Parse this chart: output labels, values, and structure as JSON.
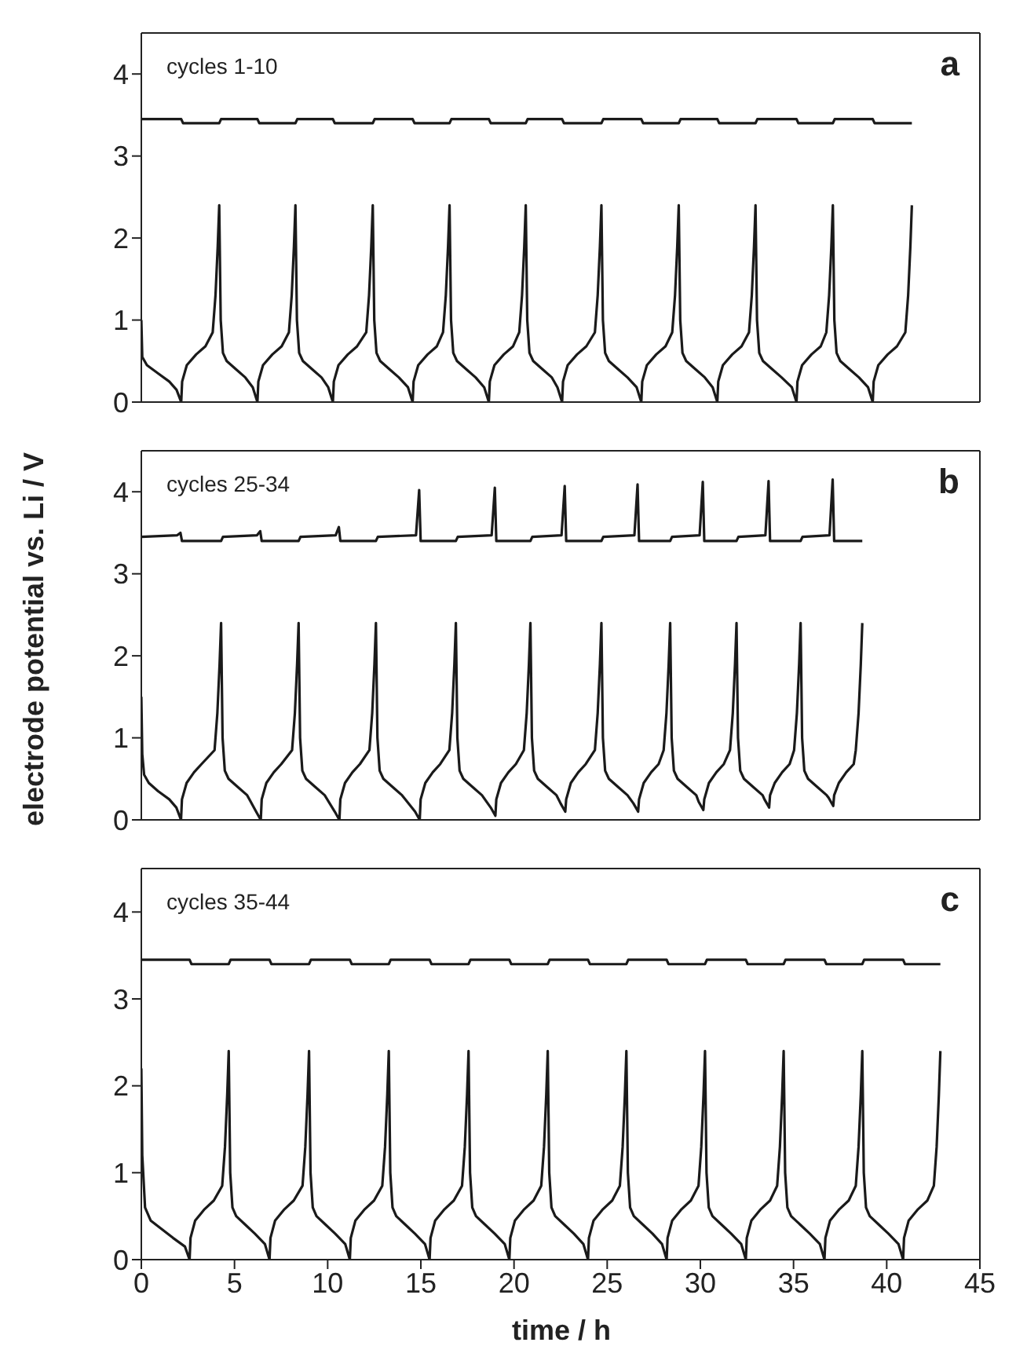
{
  "chart_data": [
    {
      "type": "line",
      "xlim": [
        0,
        45
      ],
      "ylim": [
        0,
        4.5
      ],
      "xticks": [
        0,
        5,
        10,
        15,
        20,
        25,
        30,
        35,
        40,
        45
      ],
      "yticks": [
        0,
        1,
        2,
        3,
        4
      ],
      "tick_labels": "y",
      "marker": "none",
      "line_style": "solid",
      "annotations": [
        "cycles 1-10",
        "a"
      ],
      "series": [
        {
          "color": "#1a1a1a",
          "x": [
            0,
            2.14,
            2.24,
            4.18,
            4.28,
            6.23,
            6.33,
            8.27,
            8.37,
            10.28,
            10.38,
            12.42,
            12.52,
            14.56,
            14.66,
            16.54,
            16.64,
            18.65,
            18.75,
            20.63,
            20.73,
            22.58,
            22.68,
            24.69,
            24.79,
            26.83,
            26.93,
            28.84,
            28.94,
            30.91,
            31.01,
            32.96,
            33.06,
            35.16,
            35.26,
            37.11,
            37.21,
            39.25,
            39.35,
            41.35
          ],
          "values": [
            3.45,
            3.45,
            3.4,
            3.4,
            3.45,
            3.45,
            3.4,
            3.4,
            3.45,
            3.45,
            3.4,
            3.4,
            3.45,
            3.45,
            3.4,
            3.4,
            3.45,
            3.45,
            3.4,
            3.4,
            3.45,
            3.45,
            3.4,
            3.4,
            3.45,
            3.45,
            3.4,
            3.4,
            3.45,
            3.45,
            3.4,
            3.4,
            3.45,
            3.45,
            3.4,
            3.4,
            3.45,
            3.45,
            3.4,
            3.4
          ]
        },
        {
          "color": "#1a1a1a",
          "x": [
            0,
            0.05,
            0.3,
            0.9,
            1.5,
            1.89,
            2.14,
            2.19,
            2.44,
            2.94,
            3.44,
            3.83,
            3.98,
            4.1,
            4.18,
            4.26,
            4.38,
            4.58,
            5.08,
            5.58,
            5.98,
            6.23,
            6.28,
            6.53,
            7.03,
            7.53,
            7.92,
            8.07,
            8.19,
            8.27,
            8.35,
            8.47,
            8.67,
            9.17,
            9.67,
            10.03,
            10.28,
            10.33,
            10.58,
            11.08,
            11.58,
            12.07,
            12.22,
            12.34,
            12.42,
            12.5,
            12.62,
            12.82,
            13.32,
            13.82,
            14.31,
            14.56,
            14.61,
            14.86,
            15.36,
            15.86,
            16.19,
            16.34,
            16.46,
            16.54,
            16.62,
            16.74,
            16.94,
            17.44,
            17.94,
            18.4,
            18.65,
            18.7,
            18.95,
            19.45,
            19.95,
            20.28,
            20.43,
            20.55,
            20.63,
            20.71,
            20.83,
            21.03,
            21.53,
            22.03,
            22.33,
            22.58,
            22.63,
            22.88,
            23.38,
            23.88,
            24.34,
            24.49,
            24.61,
            24.69,
            24.77,
            24.89,
            25.09,
            25.59,
            26.09,
            26.58,
            26.83,
            26.88,
            27.13,
            27.63,
            28.13,
            28.49,
            28.64,
            28.76,
            28.84,
            28.92,
            29.04,
            29.24,
            29.74,
            30.24,
            30.66,
            30.91,
            30.96,
            31.21,
            31.71,
            32.21,
            32.61,
            32.76,
            32.88,
            32.96,
            33.04,
            33.16,
            33.36,
            33.86,
            34.36,
            34.91,
            35.16,
            35.21,
            35.46,
            35.96,
            36.46,
            36.76,
            36.91,
            37.03,
            37.11,
            37.19,
            37.31,
            37.51,
            38.01,
            38.51,
            39.0,
            39.25,
            39.3,
            39.55,
            40.05,
            40.55,
            41.0,
            41.15,
            41.27,
            41.35
          ],
          "values": [
            1.0,
            0.55,
            0.45,
            0.35,
            0.25,
            0.15,
            0,
            0.25,
            0.45,
            0.58,
            0.68,
            0.85,
            1.3,
            1.9,
            2.4,
            1.0,
            0.6,
            0.5,
            0.4,
            0.3,
            0.18,
            0,
            0.25,
            0.45,
            0.58,
            0.68,
            0.85,
            1.3,
            1.9,
            2.4,
            1.0,
            0.6,
            0.5,
            0.4,
            0.3,
            0.18,
            0,
            0.25,
            0.45,
            0.58,
            0.68,
            0.85,
            1.3,
            1.9,
            2.4,
            1.0,
            0.6,
            0.5,
            0.4,
            0.3,
            0.18,
            0,
            0.25,
            0.45,
            0.58,
            0.68,
            0.85,
            1.3,
            1.9,
            2.4,
            1.0,
            0.6,
            0.5,
            0.4,
            0.3,
            0.18,
            0,
            0.25,
            0.45,
            0.58,
            0.68,
            0.85,
            1.3,
            1.9,
            2.4,
            1.0,
            0.6,
            0.5,
            0.4,
            0.3,
            0.18,
            0,
            0.25,
            0.45,
            0.58,
            0.68,
            0.85,
            1.3,
            1.9,
            2.4,
            1.0,
            0.6,
            0.5,
            0.4,
            0.3,
            0.18,
            0,
            0.25,
            0.45,
            0.58,
            0.68,
            0.85,
            1.3,
            1.9,
            2.4,
            1.0,
            0.6,
            0.5,
            0.4,
            0.3,
            0.18,
            0,
            0.25,
            0.45,
            0.58,
            0.68,
            0.85,
            1.3,
            1.9,
            2.4,
            1.0,
            0.6,
            0.5,
            0.4,
            0.3,
            0.18,
            0,
            0.25,
            0.45,
            0.58,
            0.68,
            0.85,
            1.3,
            1.9,
            2.4,
            1.0,
            0.6,
            0.5,
            0.4,
            0.3,
            0.18,
            0,
            0.25,
            0.45,
            0.58,
            0.68,
            0.85,
            1.3,
            1.9,
            2.4
          ]
        }
      ]
    },
    {
      "type": "line",
      "xlim": [
        0,
        45
      ],
      "ylim": [
        0,
        4.5
      ],
      "xticks": [
        0,
        5,
        10,
        15,
        20,
        25,
        30,
        35,
        40,
        45
      ],
      "yticks": [
        0,
        1,
        2,
        3,
        4
      ],
      "tick_labels": "y",
      "marker": "none",
      "line_style": "solid",
      "ylabel": "electrode potential vs. Li / V",
      "annotations": [
        "cycles 25-34",
        "b"
      ],
      "series": [
        {
          "color": "#1a1a1a",
          "x": [
            0,
            1.93,
            2.1,
            2.18,
            4.28,
            4.38,
            6.21,
            6.38,
            6.46,
            8.44,
            8.54,
            10.43,
            10.6,
            10.68,
            12.59,
            12.69,
            14.74,
            14.91,
            14.99,
            16.88,
            16.98,
            18.8,
            18.97,
            19.05,
            20.88,
            20.98,
            22.55,
            22.72,
            22.8,
            24.69,
            24.79,
            26.46,
            26.63,
            26.71,
            28.38,
            28.48,
            29.96,
            30.13,
            30.21,
            31.94,
            32.04,
            33.49,
            33.66,
            33.74,
            35.38,
            35.48,
            36.93,
            37.1,
            37.18,
            38.69
          ],
          "values": [
            3.45,
            3.47,
            3.5,
            3.4,
            3.4,
            3.45,
            3.47,
            3.52,
            3.4,
            3.4,
            3.45,
            3.47,
            3.57,
            3.4,
            3.4,
            3.45,
            3.47,
            4.02,
            3.4,
            3.4,
            3.45,
            3.47,
            4.05,
            3.4,
            3.4,
            3.45,
            3.47,
            4.07,
            3.4,
            3.4,
            3.45,
            3.47,
            4.09,
            3.4,
            3.4,
            3.45,
            3.47,
            4.12,
            3.4,
            3.4,
            3.45,
            3.47,
            4.13,
            3.4,
            3.4,
            3.45,
            3.47,
            4.15,
            3.4,
            3.4
          ]
        },
        {
          "color": "#1a1a1a",
          "x": [
            0,
            0.05,
            0.15,
            0.4,
            0.9,
            1.5,
            1.88,
            2.13,
            2.18,
            2.43,
            2.83,
            3.23,
            3.93,
            4.08,
            4.2,
            4.28,
            4.36,
            4.48,
            4.68,
            5.18,
            5.68,
            6.16,
            6.41,
            6.46,
            6.71,
            7.11,
            7.51,
            8.09,
            8.24,
            8.36,
            8.44,
            8.52,
            8.64,
            8.84,
            9.34,
            9.84,
            10.38,
            10.63,
            10.68,
            10.93,
            11.33,
            11.73,
            12.24,
            12.39,
            12.51,
            12.59,
            12.67,
            12.79,
            12.99,
            13.49,
            13.99,
            14.69,
            14.94,
            14.99,
            15.24,
            15.64,
            16.04,
            16.53,
            16.68,
            16.8,
            16.88,
            16.96,
            17.08,
            17.28,
            17.78,
            18.28,
            18.75,
            19.0,
            19.05,
            19.3,
            19.7,
            20.1,
            20.53,
            20.68,
            20.8,
            20.88,
            20.96,
            21.08,
            21.28,
            21.78,
            22.28,
            22.5,
            22.75,
            22.8,
            23.05,
            23.45,
            23.85,
            24.34,
            24.49,
            24.61,
            24.69,
            24.77,
            24.89,
            25.09,
            25.59,
            26.09,
            26.41,
            26.66,
            26.71,
            26.96,
            27.36,
            27.76,
            28.03,
            28.18,
            28.3,
            28.38,
            28.46,
            28.58,
            28.78,
            29.28,
            29.78,
            29.91,
            30.16,
            30.21,
            30.46,
            30.86,
            31.26,
            31.59,
            31.74,
            31.86,
            31.94,
            32.02,
            32.14,
            32.34,
            32.84,
            33.34,
            33.44,
            33.69,
            33.74,
            33.99,
            34.39,
            34.79,
            35.03,
            35.18,
            35.3,
            35.38,
            35.46,
            35.58,
            35.78,
            36.28,
            36.78,
            36.88,
            37.13,
            37.18,
            37.43,
            37.83,
            38.23,
            38.34,
            38.49,
            38.61,
            38.69
          ],
          "values": [
            1.5,
            0.8,
            0.55,
            0.45,
            0.35,
            0.25,
            0.15,
            0,
            0.25,
            0.45,
            0.58,
            0.68,
            0.85,
            1.3,
            1.9,
            2.4,
            1.0,
            0.6,
            0.5,
            0.4,
            0.3,
            0.1,
            0,
            0.25,
            0.45,
            0.58,
            0.68,
            0.85,
            1.3,
            1.9,
            2.4,
            1.0,
            0.6,
            0.5,
            0.4,
            0.3,
            0.1,
            0,
            0.25,
            0.45,
            0.58,
            0.68,
            0.85,
            1.3,
            1.9,
            2.4,
            1.0,
            0.6,
            0.5,
            0.4,
            0.3,
            0.1,
            0,
            0.25,
            0.45,
            0.58,
            0.68,
            0.85,
            1.3,
            1.9,
            2.4,
            1.0,
            0.6,
            0.5,
            0.4,
            0.3,
            0.15,
            0.05,
            0.25,
            0.45,
            0.58,
            0.68,
            0.85,
            1.3,
            1.9,
            2.4,
            1.0,
            0.6,
            0.5,
            0.4,
            0.3,
            0.2,
            0.1,
            0.25,
            0.45,
            0.58,
            0.68,
            0.85,
            1.3,
            1.9,
            2.4,
            1.0,
            0.6,
            0.5,
            0.4,
            0.3,
            0.2,
            0.1,
            0.25,
            0.45,
            0.58,
            0.68,
            0.85,
            1.3,
            1.9,
            2.4,
            1.0,
            0.6,
            0.5,
            0.4,
            0.3,
            0.22,
            0.12,
            0.25,
            0.45,
            0.58,
            0.68,
            0.85,
            1.3,
            1.9,
            2.4,
            1.0,
            0.6,
            0.5,
            0.4,
            0.3,
            0.25,
            0.15,
            0.3,
            0.45,
            0.58,
            0.68,
            0.85,
            1.3,
            1.9,
            2.4,
            1.0,
            0.6,
            0.5,
            0.4,
            0.3,
            0.27,
            0.17,
            0.3,
            0.45,
            0.58,
            0.68,
            0.85,
            1.3,
            1.9,
            2.4
          ]
        }
      ]
    },
    {
      "type": "line",
      "xlim": [
        0,
        45
      ],
      "ylim": [
        0,
        4.5
      ],
      "xticks": [
        0,
        5,
        10,
        15,
        20,
        25,
        30,
        35,
        40,
        45
      ],
      "yticks": [
        0,
        1,
        2,
        3,
        4
      ],
      "marker": "none",
      "line_style": "solid",
      "xlabel": "time / h",
      "annotations": [
        "cycles 35-44",
        "c"
      ],
      "series": [
        {
          "color": "#1a1a1a",
          "x": [
            0,
            2.59,
            2.69,
            4.69,
            4.79,
            6.88,
            6.98,
            9.0,
            9.1,
            11.19,
            11.29,
            13.28,
            13.38,
            15.47,
            15.57,
            17.56,
            17.66,
            19.75,
            19.85,
            21.81,
            21.91,
            23.97,
            24.07,
            26.03,
            26.13,
            28.19,
            28.29,
            30.25,
            30.35,
            32.44,
            32.54,
            34.47,
            34.57,
            36.66,
            36.76,
            38.69,
            38.79,
            40.88,
            40.98,
            42.88
          ],
          "values": [
            3.45,
            3.45,
            3.4,
            3.4,
            3.45,
            3.45,
            3.4,
            3.4,
            3.45,
            3.45,
            3.4,
            3.4,
            3.45,
            3.45,
            3.4,
            3.4,
            3.45,
            3.45,
            3.4,
            3.4,
            3.45,
            3.45,
            3.4,
            3.4,
            3.45,
            3.45,
            3.4,
            3.4,
            3.45,
            3.45,
            3.4,
            3.4,
            3.45,
            3.45,
            3.4,
            3.4,
            3.45,
            3.45,
            3.4,
            3.4
          ]
        },
        {
          "color": "#1a1a1a",
          "x": [
            0,
            0.05,
            0.2,
            0.5,
            1.1,
            1.7,
            2.34,
            2.59,
            2.64,
            2.89,
            3.39,
            3.89,
            4.34,
            4.49,
            4.61,
            4.69,
            4.77,
            4.89,
            5.09,
            5.59,
            6.09,
            6.63,
            6.88,
            6.93,
            7.18,
            7.68,
            8.18,
            8.65,
            8.8,
            8.92,
            9.0,
            9.08,
            9.2,
            9.4,
            9.9,
            10.4,
            10.94,
            11.19,
            11.24,
            11.49,
            11.99,
            12.49,
            12.93,
            13.08,
            13.2,
            13.28,
            13.36,
            13.48,
            13.68,
            14.18,
            14.68,
            15.22,
            15.47,
            15.52,
            15.77,
            16.27,
            16.77,
            17.21,
            17.36,
            17.48,
            17.56,
            17.64,
            17.76,
            17.96,
            18.46,
            18.96,
            19.5,
            19.75,
            19.8,
            20.05,
            20.55,
            21.05,
            21.46,
            21.61,
            21.73,
            21.81,
            21.89,
            22.01,
            22.21,
            22.71,
            23.21,
            23.72,
            23.97,
            24.02,
            24.27,
            24.77,
            25.27,
            25.68,
            25.83,
            25.95,
            26.03,
            26.11,
            26.23,
            26.43,
            26.93,
            27.43,
            27.94,
            28.19,
            28.24,
            28.49,
            28.99,
            29.49,
            29.9,
            30.05,
            30.17,
            30.25,
            30.33,
            30.45,
            30.65,
            31.15,
            31.65,
            32.19,
            32.44,
            32.49,
            32.74,
            33.24,
            33.74,
            34.12,
            34.27,
            34.39,
            34.47,
            34.55,
            34.67,
            34.87,
            35.37,
            35.87,
            36.41,
            36.66,
            36.71,
            36.96,
            37.46,
            37.96,
            38.34,
            38.49,
            38.61,
            38.69,
            38.77,
            38.89,
            39.09,
            39.59,
            40.09,
            40.63,
            40.88,
            40.93,
            41.18,
            41.68,
            42.18,
            42.53,
            42.68,
            42.8,
            42.88
          ],
          "values": [
            2.2,
            1.2,
            0.6,
            0.45,
            0.35,
            0.25,
            0.15,
            0,
            0.25,
            0.45,
            0.58,
            0.68,
            0.85,
            1.3,
            1.9,
            2.4,
            1.0,
            0.6,
            0.5,
            0.4,
            0.3,
            0.18,
            0,
            0.25,
            0.45,
            0.58,
            0.68,
            0.85,
            1.3,
            1.9,
            2.4,
            1.0,
            0.6,
            0.5,
            0.4,
            0.3,
            0.18,
            0,
            0.25,
            0.45,
            0.58,
            0.68,
            0.85,
            1.3,
            1.9,
            2.4,
            1.0,
            0.6,
            0.5,
            0.4,
            0.3,
            0.18,
            0,
            0.25,
            0.45,
            0.58,
            0.68,
            0.85,
            1.3,
            1.9,
            2.4,
            1.0,
            0.6,
            0.5,
            0.4,
            0.3,
            0.18,
            0,
            0.25,
            0.45,
            0.58,
            0.68,
            0.85,
            1.3,
            1.9,
            2.4,
            1.0,
            0.6,
            0.5,
            0.4,
            0.3,
            0.18,
            0,
            0.25,
            0.45,
            0.58,
            0.68,
            0.85,
            1.3,
            1.9,
            2.4,
            1.0,
            0.6,
            0.5,
            0.4,
            0.3,
            0.18,
            0,
            0.25,
            0.45,
            0.58,
            0.68,
            0.85,
            1.3,
            1.9,
            2.4,
            1.0,
            0.6,
            0.5,
            0.4,
            0.3,
            0.18,
            0,
            0.25,
            0.45,
            0.58,
            0.68,
            0.85,
            1.3,
            1.9,
            2.4,
            1.0,
            0.6,
            0.5,
            0.4,
            0.3,
            0.18,
            0,
            0.25,
            0.45,
            0.58,
            0.68,
            0.85,
            1.3,
            1.9,
            2.4,
            1.0,
            0.6,
            0.5,
            0.4,
            0.3,
            0.18,
            0,
            0.25,
            0.45,
            0.58,
            0.68,
            0.85,
            1.3,
            1.9,
            2.4
          ]
        }
      ]
    }
  ]
}
